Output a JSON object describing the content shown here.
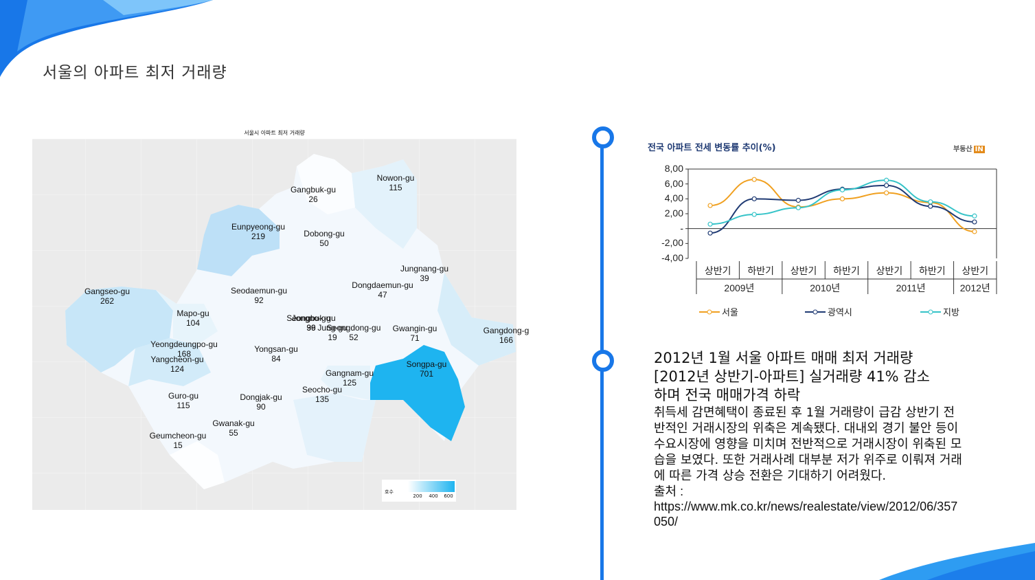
{
  "slide": {
    "title": "서울의 아파트 최저 거래량"
  },
  "map": {
    "title": "서울시 아파트 최저 거래량",
    "legend_title": "호수",
    "legend_ticks": [
      "200",
      "400",
      "600"
    ],
    "color_low": "#ffffff",
    "color_high": "#1eb4f0",
    "districts": [
      {
        "name": "Gangbuk-gu",
        "value": "26"
      },
      {
        "name": "Nowon-gu",
        "value": "115"
      },
      {
        "name": "Eunpyeong-gu",
        "value": "219"
      },
      {
        "name": "Dobong-gu",
        "value": "50"
      },
      {
        "name": "Jungnang-gu",
        "value": "39"
      },
      {
        "name": "Dongdaemun-gu",
        "value": "47"
      },
      {
        "name": "Gangseo-gu",
        "value": "262"
      },
      {
        "name": "Seodaemun-gu",
        "value": "92"
      },
      {
        "name": "Mapo-gu",
        "value": "104"
      },
      {
        "name": "Seongbuk-gu",
        "value": "99"
      },
      {
        "name": "Jongno-gu",
        "value": "36"
      },
      {
        "name": "Jung-gu",
        "value": "19"
      },
      {
        "name": "Seongdong-gu",
        "value": "52"
      },
      {
        "name": "Gwangin-gu",
        "value": "71"
      },
      {
        "name": "Gangdong-g",
        "value": "166"
      },
      {
        "name": "Yeongdeungpo-gu",
        "value": "168"
      },
      {
        "name": "Yangcheon-gu",
        "value": "124"
      },
      {
        "name": "Yongsan-gu",
        "value": "84"
      },
      {
        "name": "Songpa-gu",
        "value": "701"
      },
      {
        "name": "Gangnam-gu",
        "value": "125"
      },
      {
        "name": "Seocho-gu",
        "value": "135"
      },
      {
        "name": "Guro-gu",
        "value": "115"
      },
      {
        "name": "Dongjak-gu",
        "value": "90"
      },
      {
        "name": "Gwanak-gu",
        "value": "55"
      },
      {
        "name": "Geumcheon-gu",
        "value": "15"
      }
    ]
  },
  "chart_data": {
    "type": "line",
    "title": "전국 아파트 전세 변동률 추이(%)",
    "brand": "부동산",
    "brand_badge": "IN",
    "categories": [
      "상반기",
      "하반기",
      "상반기",
      "하반기",
      "상반기",
      "하반기",
      "상반기"
    ],
    "year_groups": [
      {
        "label": "2009년",
        "span": 2
      },
      {
        "label": "2010년",
        "span": 2
      },
      {
        "label": "2011년",
        "span": 2
      },
      {
        "label": "2012년",
        "span": 1
      }
    ],
    "ylim": [
      -4,
      8
    ],
    "yticks": [
      "8,00",
      "6,00",
      "4,00",
      "2,00",
      "-",
      "-2,00",
      "-4,00"
    ],
    "series": [
      {
        "name": "서울",
        "color": "#f0a020",
        "values": [
          3.1,
          6.6,
          2.9,
          4.0,
          4.8,
          3.5,
          -0.4
        ]
      },
      {
        "name": "광역시",
        "color": "#1f3a73",
        "values": [
          -0.6,
          4.0,
          3.8,
          5.3,
          5.8,
          3.0,
          0.9
        ]
      },
      {
        "name": "지방",
        "color": "#35c3c8",
        "values": [
          0.6,
          1.9,
          2.8,
          5.2,
          6.5,
          3.6,
          1.7
        ]
      }
    ]
  },
  "article": {
    "headline_line1": "2012년 1월 서울 아파트 매매 최저 거래량",
    "headline_line2": "[2012년 상반기-아파트] 실거래량 41% 감소",
    "headline_line3": "하며 전국 매매가격 하락",
    "body": "취득세 감면혜택이 종료된 후 1월 거래량이 급감 상반기 전반적인 거래시장의 위축은 계속됐다. 대내외 경기 불안 등이 수요시장에 영향을 미치며 전반적으로 거래시장이 위축된 모습을 보였다. 또한 거래사례 대부분 저가 위주로 이뤄져 거래에 따른 가격 상승 전환은 기대하기 어려웠다.",
    "source_label": "출처 :",
    "source_url": "https://www.mk.co.kr/news/realestate/view/2012/06/357050/"
  }
}
